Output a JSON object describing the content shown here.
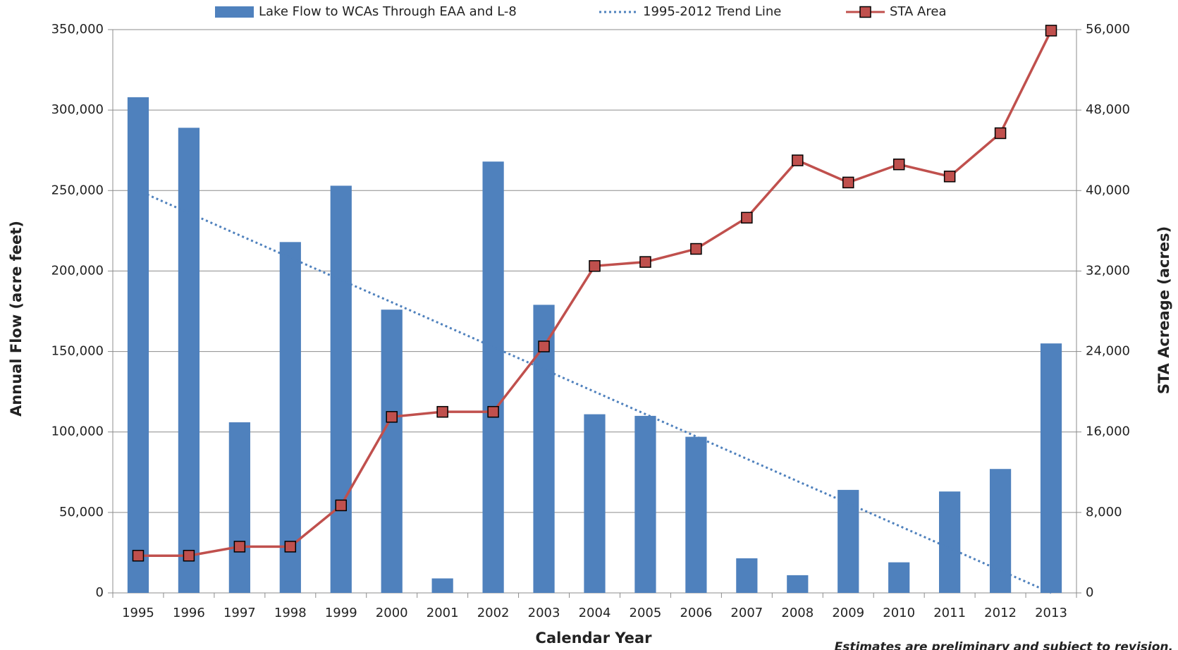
{
  "chart_data": {
    "type": "bar",
    "categories": [
      "1995",
      "1996",
      "1997",
      "1998",
      "1999",
      "2000",
      "2001",
      "2002",
      "2003",
      "2004",
      "2005",
      "2006",
      "2007",
      "2008",
      "2009",
      "2010",
      "2011",
      "2012",
      "2013"
    ],
    "series": [
      {
        "name": "Lake Flow to WCAs Through EAA and L-8",
        "type": "bar",
        "color": "#4f81bd",
        "values": [
          308000,
          289000,
          106000,
          218000,
          253000,
          176000,
          9000,
          268000,
          179000,
          111000,
          110000,
          97000,
          21500,
          11000,
          64000,
          19000,
          63000,
          77000,
          155000
        ]
      },
      {
        "name": "1995-2012 Trend Line",
        "type": "line",
        "line_style": "dotted",
        "color": "#4f81bd",
        "values": [
          250000,
          236100,
          222200,
          208300,
          194400,
          180600,
          166700,
          152800,
          138900,
          125000,
          111100,
          97200,
          83300,
          69400,
          55600,
          41700,
          27800,
          13900,
          0
        ]
      },
      {
        "name": "STA Area",
        "type": "line",
        "line_style": "solid",
        "marker": "square",
        "color": "#c0504d",
        "axis": "y2",
        "values": [
          3700,
          3700,
          4600,
          4600,
          8700,
          17500,
          18000,
          18000,
          24500,
          32500,
          32900,
          34200,
          37300,
          43000,
          40800,
          42600,
          41400,
          45700,
          55900
        ]
      }
    ],
    "ylim": [
      0,
      350000
    ],
    "yticks": [
      0,
      {
        "value": 50000,
        "label": "50,000"
      },
      {
        "value": 100000,
        "label": "100,000"
      },
      {
        "value": 150000,
        "label": "150,000"
      },
      {
        "value": 200000,
        "label": "200,000"
      },
      {
        "value": 250000,
        "label": "250,000"
      },
      {
        "value": 300000,
        "label": "300,000"
      },
      {
        "value": 350000,
        "label": "350,000"
      }
    ],
    "y2lim": [
      0,
      56000
    ],
    "y2ticks": [
      0,
      {
        "value": 8000,
        "label": "8,000"
      },
      {
        "value": 16000,
        "label": "16,000"
      },
      {
        "value": 24000,
        "label": "24,000"
      },
      {
        "value": 32000,
        "label": "32,000"
      },
      {
        "value": 40000,
        "label": "40,000"
      },
      {
        "value": 48000,
        "label": "48,000"
      },
      {
        "value": 56000,
        "label": "56,000"
      }
    ],
    "ylabel": "Annual Flow (acre feet)",
    "y2label": "STA Acreage (acres)",
    "xlabel": "Calendar Year",
    "annotation": "Estimates are preliminary and subject to revision.",
    "grid": true,
    "legend": "top"
  }
}
